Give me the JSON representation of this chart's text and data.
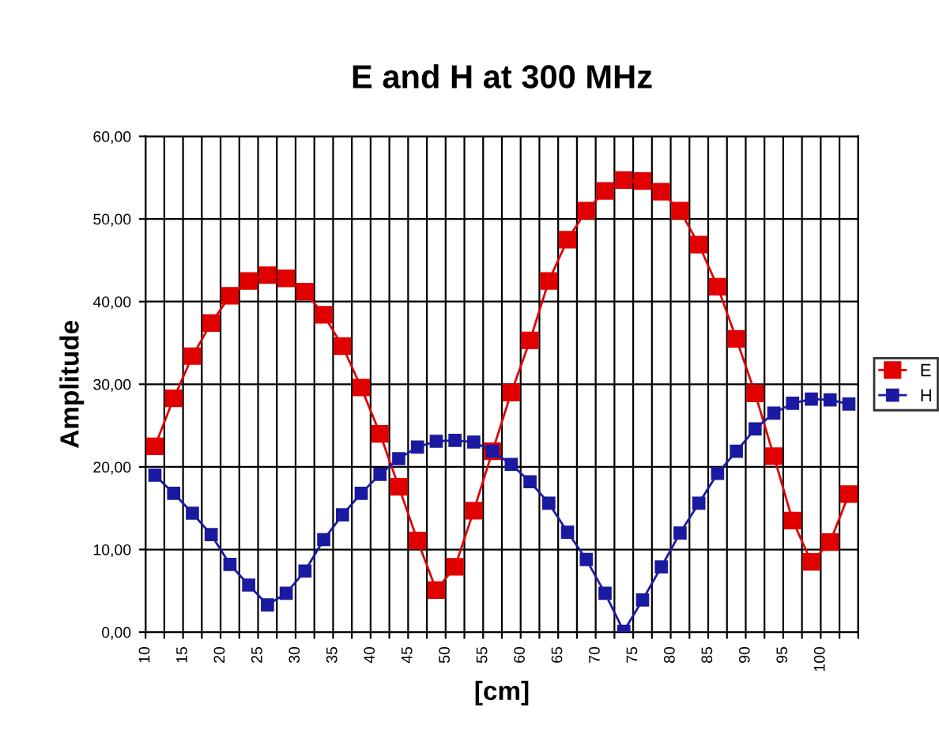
{
  "chart_data": {
    "type": "line",
    "title": "E and H at 300 MHz",
    "xlabel": "[cm]",
    "ylabel": "Amplitude",
    "x": [
      11.25,
      13.75,
      16.25,
      18.75,
      21.25,
      23.75,
      26.25,
      28.75,
      31.25,
      33.75,
      36.25,
      38.75,
      41.25,
      43.75,
      46.25,
      48.75,
      51.25,
      53.75,
      56.25,
      58.75,
      61.25,
      63.75,
      66.25,
      68.75,
      71.25,
      73.75,
      76.25,
      78.75,
      81.25,
      83.75,
      86.25,
      88.75,
      91.25,
      93.75,
      96.25,
      98.75,
      101.25,
      103.75
    ],
    "series": [
      {
        "name": "E",
        "color": "#e00000",
        "values": [
          22.5,
          28.3,
          33.4,
          37.4,
          40.7,
          42.5,
          43.2,
          42.8,
          41.2,
          38.4,
          34.6,
          29.6,
          24.0,
          17.6,
          11.1,
          5.1,
          7.9,
          14.7,
          21.9,
          29.0,
          35.3,
          42.5,
          47.5,
          51.0,
          53.4,
          54.7,
          54.6,
          53.3,
          51.0,
          46.9,
          41.8,
          35.5,
          28.9,
          21.3,
          13.5,
          8.5,
          10.9,
          16.7
        ]
      },
      {
        "name": "H",
        "color": "#1a1aa0",
        "values": [
          19.0,
          16.8,
          14.4,
          11.8,
          8.2,
          5.7,
          3.3,
          4.7,
          7.4,
          11.2,
          14.2,
          16.8,
          19.1,
          21.0,
          22.4,
          23.1,
          23.2,
          23.0,
          21.9,
          20.3,
          18.2,
          15.6,
          12.1,
          8.8,
          4.7,
          0.1,
          3.9,
          7.9,
          12.0,
          15.6,
          19.2,
          21.9,
          24.6,
          26.5,
          27.7,
          28.2,
          28.1,
          27.6
        ]
      }
    ],
    "xlim": [
      10,
      105
    ],
    "xticks": [
      10,
      {
        "value": 12.5,
        "label": null
      },
      15,
      {
        "value": 17.5,
        "label": null
      },
      20,
      {
        "value": 22.5,
        "label": null
      },
      25,
      {
        "value": 27.5,
        "label": null
      },
      30,
      {
        "value": 32.5,
        "label": null
      },
      35,
      {
        "value": 37.5,
        "label": null
      },
      40,
      {
        "value": 42.5,
        "label": null
      },
      45,
      {
        "value": 47.5,
        "label": null
      },
      50,
      {
        "value": 52.5,
        "label": null
      },
      55,
      {
        "value": 57.5,
        "label": null
      },
      60,
      {
        "value": 62.5,
        "label": null
      },
      65,
      {
        "value": 67.5,
        "label": null
      },
      70,
      {
        "value": 72.5,
        "label": null
      },
      75,
      {
        "value": 77.5,
        "label": null
      },
      80,
      {
        "value": 82.5,
        "label": null
      },
      85,
      {
        "value": 87.5,
        "label": null
      },
      90,
      {
        "value": 92.5,
        "label": null
      },
      95,
      {
        "value": 97.5,
        "label": null
      },
      100,
      {
        "value": 102.5,
        "label": null
      },
      {
        "value": 105,
        "label": null
      }
    ],
    "ylim": [
      0,
      60
    ],
    "yticks": [
      {
        "value": 0,
        "label": "0,00"
      },
      {
        "value": 10,
        "label": "10,00"
      },
      {
        "value": 20,
        "label": "20,00"
      },
      {
        "value": 30,
        "label": "30,00"
      },
      {
        "value": 40,
        "label": "40,00"
      },
      {
        "value": 50,
        "label": "50,00"
      },
      {
        "value": 60,
        "label": "60,00"
      }
    ],
    "grid": true,
    "legend": "right",
    "marker": "square",
    "line_style": "solid"
  }
}
